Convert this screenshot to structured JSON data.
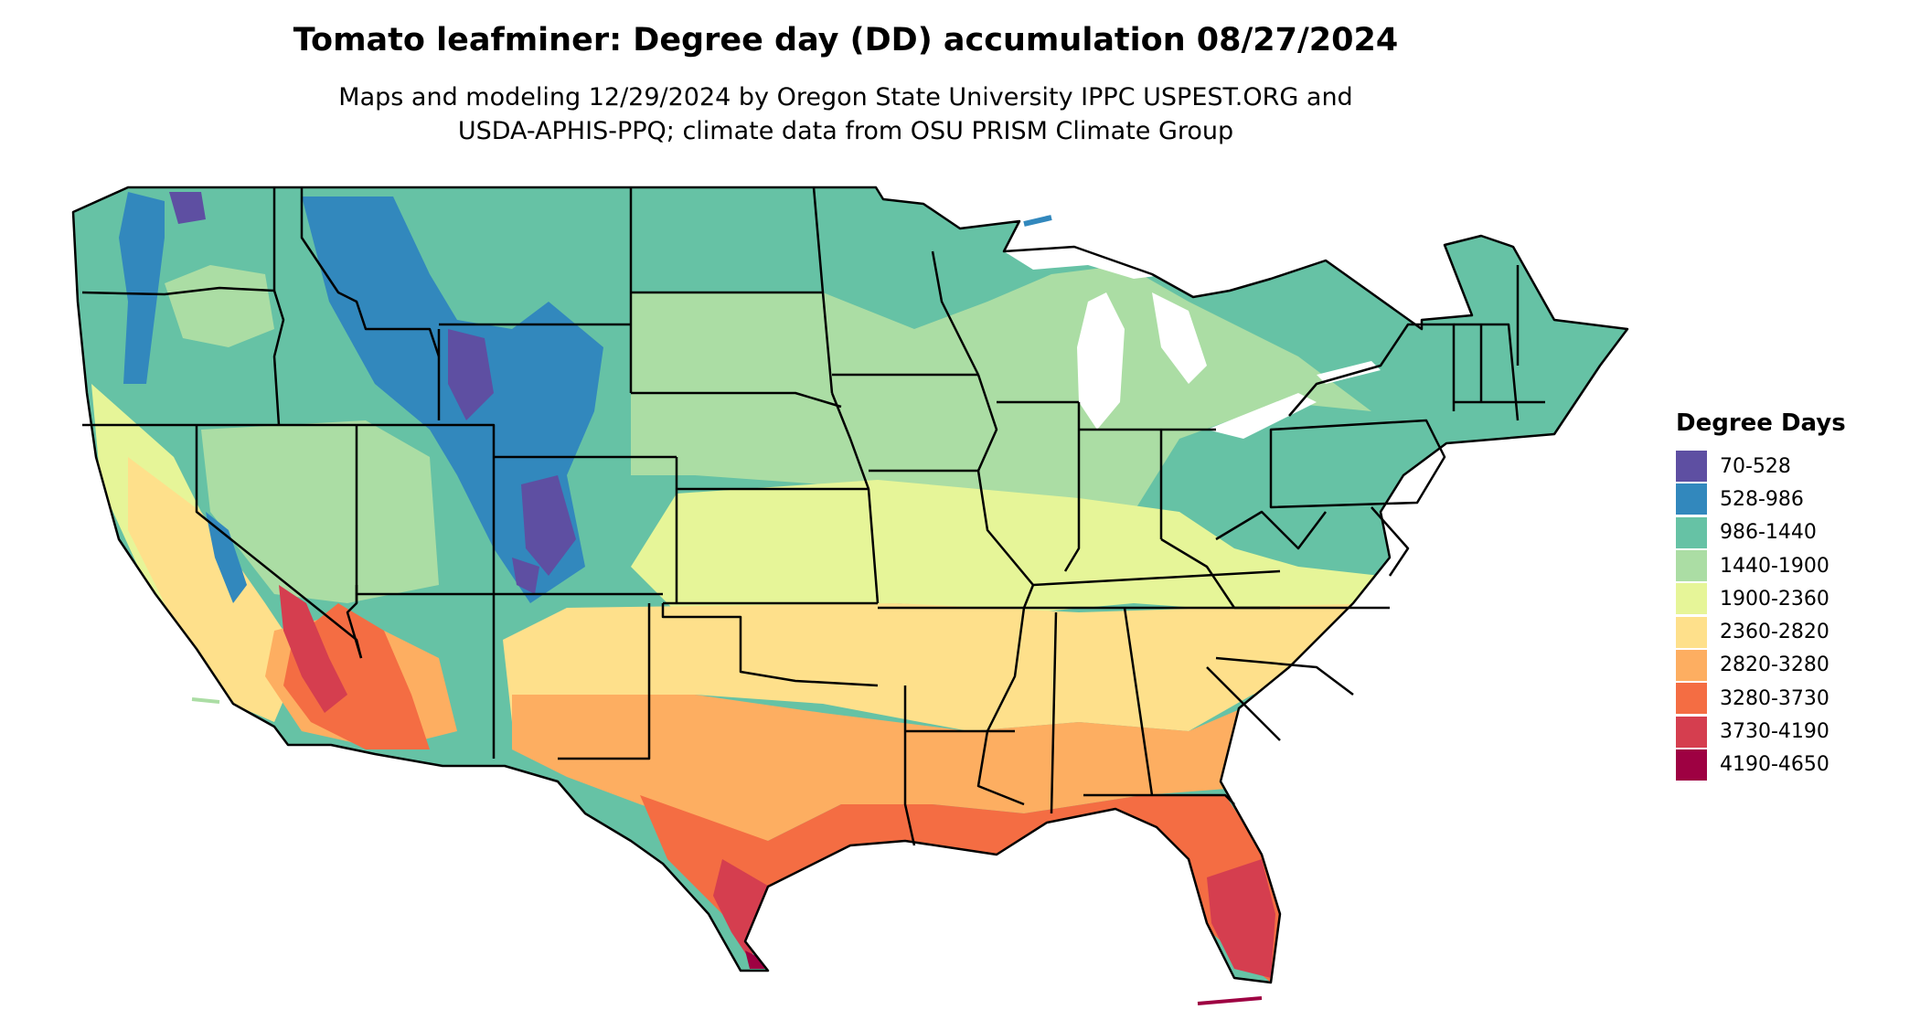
{
  "header": {
    "title": "Tomato leafminer: Degree day (DD) accumulation 08/27/2024",
    "subtitle_line1": "Maps and modeling 12/29/2024 by Oregon State University IPPC USPEST.ORG and",
    "subtitle_line2": "USDA-APHIS-PPQ; climate data from OSU PRISM Climate Group"
  },
  "legend": {
    "title": "Degree Days",
    "items": [
      {
        "label": "70-528",
        "color": "#5E4FA2"
      },
      {
        "label": "528-986",
        "color": "#3288BD"
      },
      {
        "label": "986-1440",
        "color": "#66C2A5"
      },
      {
        "label": "1440-1900",
        "color": "#ABDDA4"
      },
      {
        "label": "1900-2360",
        "color": "#E6F598"
      },
      {
        "label": "2360-2820",
        "color": "#FEE08B"
      },
      {
        "label": "2820-3280",
        "color": "#FDAE61"
      },
      {
        "label": "3280-3730",
        "color": "#F46D43"
      },
      {
        "label": "3730-4190",
        "color": "#D53E4F"
      },
      {
        "label": "4190-4650",
        "color": "#9E0142"
      }
    ]
  },
  "map": {
    "region": "Contiguous United States",
    "colors": {
      "70-528": "#5E4FA2",
      "528-986": "#3288BD",
      "986-1440": "#66C2A5",
      "1440-1900": "#ABDDA4",
      "1900-2360": "#E6F598",
      "2360-2820": "#FEE08B",
      "2820-3280": "#FDAE61",
      "3280-3730": "#F46D43",
      "3730-4190": "#D53E4F",
      "4190-4650": "#9E0142",
      "border": "#000000",
      "water": "#ffffff"
    }
  }
}
